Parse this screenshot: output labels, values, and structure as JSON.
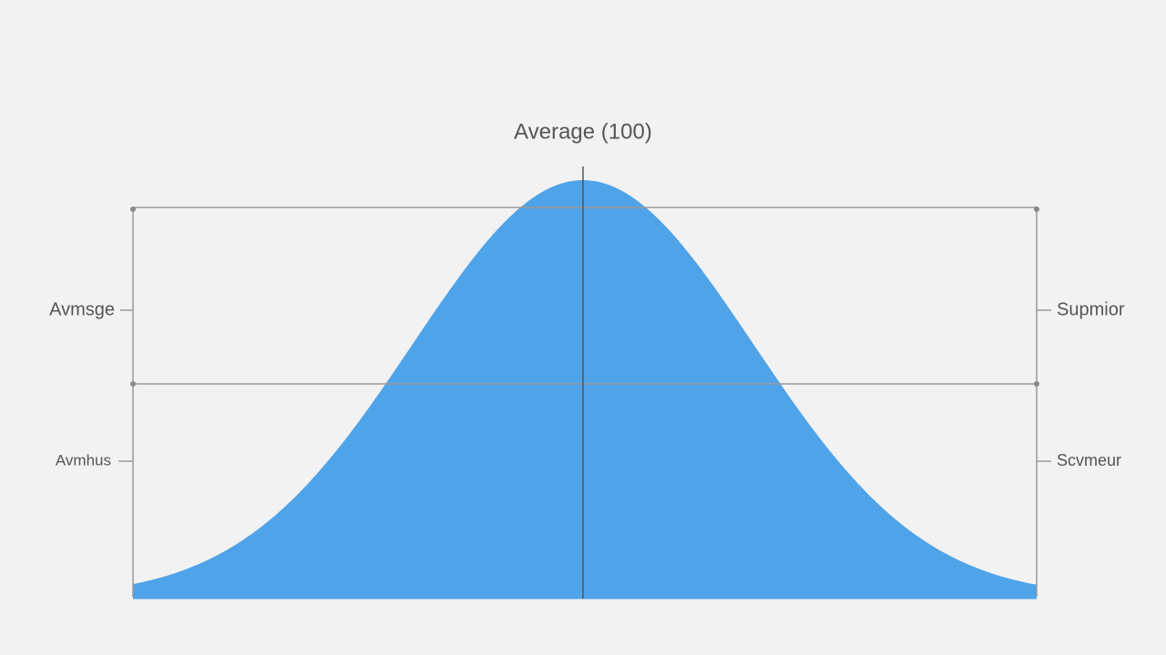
{
  "title": "Average (100)",
  "left_labels": [
    "Avmsge",
    "Avmhus"
  ],
  "right_labels": [
    "Supmior",
    "Scvmeur"
  ]
}
